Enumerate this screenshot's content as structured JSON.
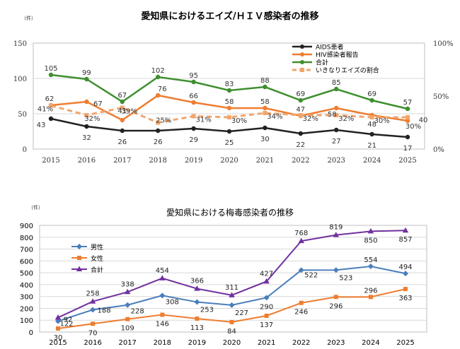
{
  "chart_data": [
    {
      "type": "line",
      "title": "愛知県におけるエイズ/ＨＩＶ感染者の推移",
      "unit": "（件）",
      "x": [
        "2015",
        "2016",
        "2017",
        "2018",
        "2019",
        "2020",
        "2021",
        "2022",
        "2023",
        "2024",
        "2025"
      ],
      "y_left_ticks": [
        "0",
        "50",
        "100",
        "150"
      ],
      "y_right_ticks": [
        "0%",
        "50%",
        "100%"
      ],
      "ylim": [
        0,
        150
      ],
      "ylim_right": [
        0,
        100
      ],
      "grid": true,
      "legend_position": "top-right",
      "series": [
        {
          "name": "AIDS患者",
          "color": "#222222",
          "style": "solid",
          "axis": "left",
          "values": [
            43,
            32,
            26,
            26,
            29,
            25,
            30,
            22,
            27,
            21,
            17
          ],
          "labels": [
            "43",
            "32",
            "26",
            "26",
            "29",
            "25",
            "30",
            "22",
            "27",
            "21",
            "17"
          ]
        },
        {
          "name": "HIV感染者報告",
          "color": "#ee7d31",
          "style": "solid",
          "axis": "left",
          "values": [
            62,
            67,
            41,
            76,
            66,
            58,
            58,
            47,
            58,
            48,
            40
          ],
          "labels": [
            "62",
            "67",
            "41",
            "76",
            "66",
            "58",
            "58",
            "47",
            "58",
            "48",
            "40"
          ]
        },
        {
          "name": "合計",
          "color": "#3f8f2f",
          "style": "solid",
          "axis": "left",
          "values": [
            105,
            99,
            67,
            102,
            95,
            83,
            88,
            69,
            85,
            69,
            57
          ],
          "labels": [
            "105",
            "99",
            "67",
            "102",
            "95",
            "83",
            "88",
            "69",
            "85",
            "69",
            "57"
          ]
        },
        {
          "name": "いきなりエイズの割合",
          "color": "#f2a56b",
          "style": "dashed",
          "axis": "right",
          "values": [
            41,
            32,
            39,
            25,
            31,
            30,
            34,
            32,
            32,
            30,
            30
          ],
          "labels": [
            "41%",
            "32%",
            "39%",
            "25%",
            "31%",
            "30%",
            "34%",
            "32%",
            "32%",
            "30%",
            "30%"
          ]
        }
      ]
    },
    {
      "type": "line",
      "title": "愛知県における梅毒感染者の推移",
      "unit": "（件）",
      "x": [
        "2015",
        "2016",
        "2017",
        "2018",
        "2019",
        "2020",
        "2021",
        "2022",
        "2023",
        "2024",
        "2025"
      ],
      "y_ticks": [
        "0",
        "100",
        "200",
        "300",
        "400",
        "500",
        "600",
        "700",
        "800",
        "900"
      ],
      "ylim": [
        0,
        900
      ],
      "grid": true,
      "legend_position": "top-left",
      "series": [
        {
          "name": "男性",
          "color": "#4a7ebb",
          "marker": "diamond",
          "values": [
            92,
            188,
            228,
            308,
            253,
            227,
            290,
            522,
            523,
            554,
            494
          ],
          "labels": [
            "92",
            "188",
            "228",
            "308",
            "253",
            "227",
            "290",
            "522",
            "523",
            "554",
            "494"
          ]
        },
        {
          "name": "女性",
          "color": "#ee7d31",
          "marker": "square",
          "values": [
            30,
            70,
            109,
            146,
            113,
            84,
            137,
            246,
            296,
            296,
            363
          ],
          "labels": [
            "30",
            "70",
            "109",
            "146",
            "113",
            "84",
            "137",
            "246",
            "296",
            "296",
            "363"
          ]
        },
        {
          "name": "合計",
          "color": "#7030a0",
          "marker": "triangle",
          "values": [
            122,
            258,
            338,
            454,
            366,
            311,
            427,
            768,
            819,
            850,
            857
          ],
          "labels": [
            "122",
            "258",
            "338",
            "454",
            "366",
            "311",
            "427",
            "768",
            "819",
            "850",
            "857"
          ]
        }
      ]
    }
  ]
}
